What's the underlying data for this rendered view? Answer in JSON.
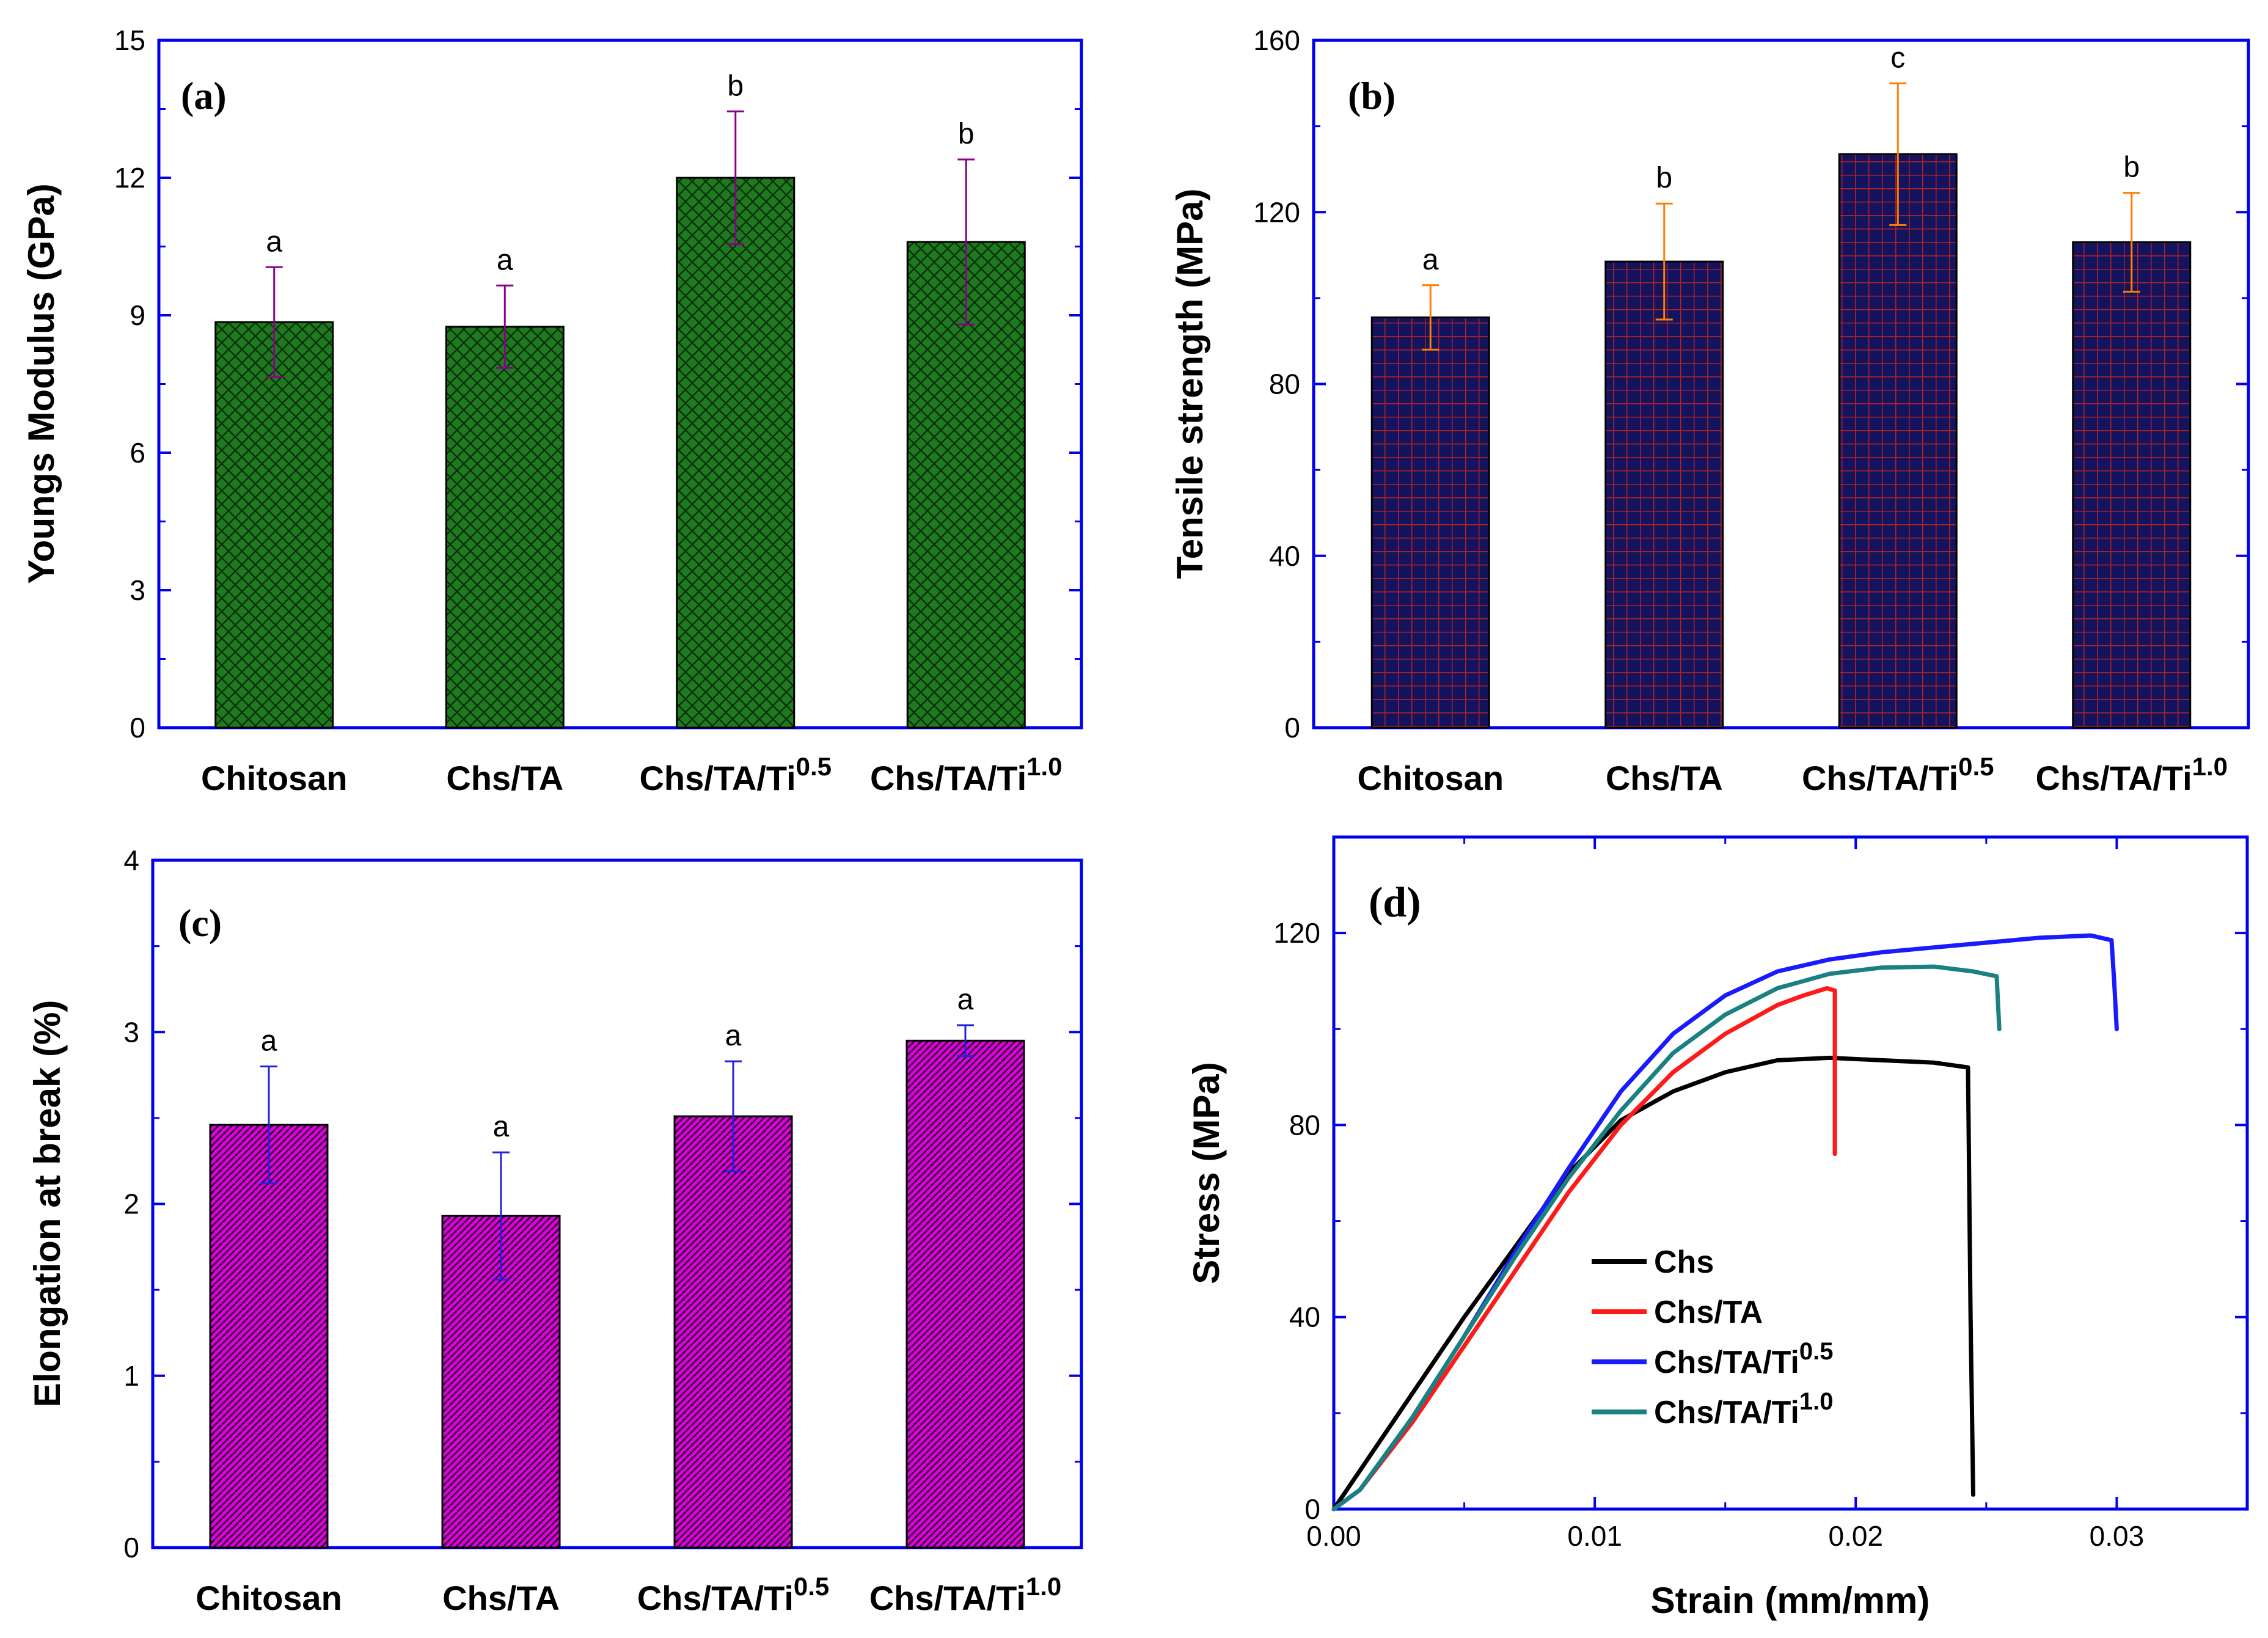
{
  "colors": {
    "axis_frame": "#0000ee",
    "panel_a_fill": "#1f7a1f",
    "panel_a_hatch": "#0b300b",
    "panel_a_error": "#8b008b",
    "panel_b_fill": "#14145e",
    "panel_b_hatch": "#b22222",
    "panel_b_error": "#ff7f00",
    "panel_c_fill": "#e000e0",
    "panel_c_hatch": "#3a003a",
    "panel_c_error": "#2222dd",
    "line_chs": "#000000",
    "line_chs_ta": "#ff1a1a",
    "line_chs_ta_ti05": "#1a1aff",
    "line_chs_ta_ti10": "#1a8080"
  },
  "chart_data": [
    {
      "panel": "(a)",
      "type": "bar",
      "ylabel": "Youngs Modulus (GPa)",
      "ylim": [
        0,
        15
      ],
      "yticks": [
        0,
        3,
        6,
        9,
        12,
        15
      ],
      "categories": [
        {
          "base": "Chitosan",
          "sup": ""
        },
        {
          "base": "Chs/TA",
          "sup": ""
        },
        {
          "base": "Chs/TA/Ti",
          "sup": "0.5"
        },
        {
          "base": "Chs/TA/Ti",
          "sup": "1.0"
        }
      ],
      "values": [
        8.85,
        8.75,
        12.0,
        10.6
      ],
      "errors": [
        1.2,
        0.9,
        1.45,
        1.8
      ],
      "significance": [
        "a",
        "a",
        "b",
        "b"
      ],
      "hatch": "crosshatch"
    },
    {
      "panel": "(b)",
      "type": "bar",
      "ylabel": "Tensile strength (MPa)",
      "ylim": [
        0,
        160
      ],
      "yticks": [
        0,
        40,
        80,
        120,
        160
      ],
      "categories": [
        {
          "base": "Chitosan",
          "sup": ""
        },
        {
          "base": "Chs/TA",
          "sup": ""
        },
        {
          "base": "Chs/TA/Ti",
          "sup": "0.5"
        },
        {
          "base": "Chs/TA/Ti",
          "sup": "1.0"
        }
      ],
      "values": [
        95.5,
        108.5,
        133.5,
        113
      ],
      "errors": [
        7.5,
        13.5,
        16.5,
        11.5
      ],
      "significance": [
        "a",
        "b",
        "c",
        "b"
      ],
      "hatch": "grid"
    },
    {
      "panel": "(c)",
      "type": "bar",
      "ylabel": "Elongation at break (%)",
      "ylim": [
        0,
        4
      ],
      "yticks": [
        0,
        1,
        2,
        3,
        4
      ],
      "categories": [
        {
          "base": "Chitosan",
          "sup": ""
        },
        {
          "base": "Chs/TA",
          "sup": ""
        },
        {
          "base": "Chs/TA/Ti",
          "sup": "0.5"
        },
        {
          "base": "Chs/TA/Ti",
          "sup": "1.0"
        }
      ],
      "values": [
        2.46,
        1.93,
        2.51,
        2.95
      ],
      "errors": [
        0.34,
        0.37,
        0.32,
        0.09
      ],
      "significance": [
        "a",
        "a",
        "a",
        "a"
      ],
      "hatch": "diagonal"
    },
    {
      "panel": "(d)",
      "type": "line",
      "xlabel": "Strain (mm/mm)",
      "ylabel": "Stress (MPa)",
      "xlim": [
        0,
        0.035
      ],
      "ylim": [
        0,
        140
      ],
      "xticks": [
        0.0,
        0.01,
        0.02,
        0.03
      ],
      "xtick_labels": [
        "0.00",
        "0.01",
        "0.02",
        "0.03"
      ],
      "yticks": [
        0,
        40,
        80,
        120
      ],
      "legend_position": "lower-center",
      "series": [
        {
          "name": "Chs",
          "sup": "",
          "points": [
            [
              0,
              0
            ],
            [
              0.001,
              8
            ],
            [
              0.003,
              24
            ],
            [
              0.005,
              40
            ],
            [
              0.007,
              55
            ],
            [
              0.009,
              70
            ],
            [
              0.011,
              81
            ],
            [
              0.013,
              87
            ],
            [
              0.015,
              91
            ],
            [
              0.017,
              93.5
            ],
            [
              0.019,
              94
            ],
            [
              0.021,
              93.5
            ],
            [
              0.023,
              93
            ],
            [
              0.0243,
              92
            ],
            [
              0.0244,
              40
            ],
            [
              0.0245,
              3
            ]
          ]
        },
        {
          "name": "Chs/TA",
          "sup": "",
          "points": [
            [
              0,
              0
            ],
            [
              0.001,
              4
            ],
            [
              0.003,
              18
            ],
            [
              0.005,
              34
            ],
            [
              0.007,
              50
            ],
            [
              0.009,
              66
            ],
            [
              0.011,
              80
            ],
            [
              0.013,
              91
            ],
            [
              0.015,
              99
            ],
            [
              0.017,
              105
            ],
            [
              0.018,
              107
            ],
            [
              0.0189,
              108.5
            ],
            [
              0.0192,
              108
            ],
            [
              0.0192,
              74
            ]
          ]
        },
        {
          "name": "Chs/TA/Ti",
          "sup": "0.5",
          "points": [
            [
              0,
              0
            ],
            [
              0.001,
              4
            ],
            [
              0.003,
              19
            ],
            [
              0.005,
              36
            ],
            [
              0.007,
              54
            ],
            [
              0.009,
              71
            ],
            [
              0.011,
              87
            ],
            [
              0.013,
              99
            ],
            [
              0.015,
              107
            ],
            [
              0.017,
              112
            ],
            [
              0.019,
              114.5
            ],
            [
              0.021,
              116
            ],
            [
              0.023,
              117
            ],
            [
              0.025,
              118
            ],
            [
              0.027,
              119
            ],
            [
              0.029,
              119.5
            ],
            [
              0.0298,
              118.5
            ],
            [
              0.0299,
              110
            ],
            [
              0.03,
              100
            ]
          ]
        },
        {
          "name": "Chs/TA/Ti",
          "sup": "1.0",
          "points": [
            [
              0,
              0
            ],
            [
              0.001,
              4
            ],
            [
              0.003,
              19
            ],
            [
              0.005,
              36
            ],
            [
              0.007,
              53
            ],
            [
              0.009,
              69
            ],
            [
              0.011,
              83
            ],
            [
              0.013,
              95
            ],
            [
              0.015,
              103
            ],
            [
              0.017,
              108.5
            ],
            [
              0.019,
              111.5
            ],
            [
              0.021,
              112.8
            ],
            [
              0.023,
              113
            ],
            [
              0.0245,
              112
            ],
            [
              0.0254,
              111
            ],
            [
              0.0255,
              100
            ]
          ]
        }
      ]
    }
  ]
}
